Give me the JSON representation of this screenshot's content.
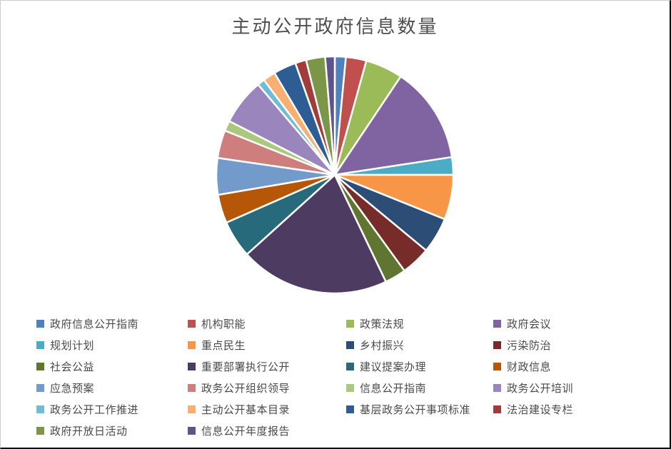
{
  "title": "主动公开政府信息数量",
  "chart_data": {
    "type": "pie",
    "title": "主动公开政府信息数量",
    "legend_position": "bottom",
    "start_angle_deg": 0,
    "direction": "clockwise",
    "values_are_estimates_from_arc_angles": true,
    "categories": [
      "政府信息公开指南",
      "机构职能",
      "政策法规",
      "政府会议",
      "规划计划",
      "重点民生",
      "乡村振兴",
      "污染防治",
      "社会公益",
      "重要部署执行公开",
      "建议提案办理",
      "财政信息",
      "应急预案",
      "政务公开组织领导",
      "信息公开指南",
      "政务公开培训",
      "政务公开工作推进",
      "主动公开基本目录",
      "基层政务公开事项标准",
      "法治建设专栏",
      "政府开放日活动",
      "信息公开年度报告"
    ],
    "values_percent": [
      1.5,
      2.8,
      5.1,
      13.2,
      2.4,
      6.1,
      4.9,
      4.0,
      2.9,
      20.4,
      5.1,
      3.9,
      5.0,
      3.8,
      1.4,
      6.3,
      1.0,
      1.7,
      3.1,
      1.5,
      2.6,
      1.3
    ],
    "colors": [
      "#4F81BD",
      "#C0504D",
      "#9BBB59",
      "#8064A2",
      "#4BACC6",
      "#F79646",
      "#2C4D75",
      "#772C2A",
      "#5F7530",
      "#4D3B62",
      "#276A7C",
      "#B65708",
      "#729ACA",
      "#CE7E7C",
      "#AAC87E",
      "#9A85BC",
      "#6FBCD6",
      "#F9AE74",
      "#2E5C94",
      "#A03C39",
      "#7C9647",
      "#5C538F"
    ],
    "slice_border_color": "#FFFFFF"
  }
}
